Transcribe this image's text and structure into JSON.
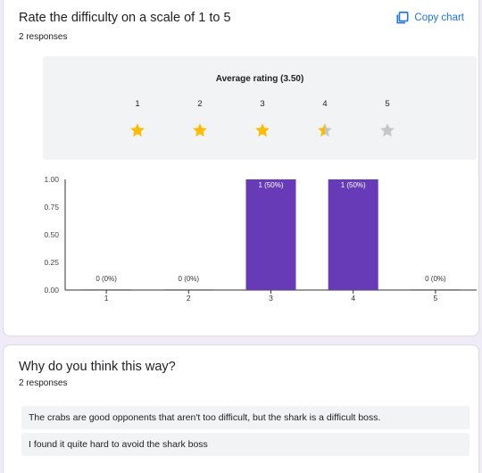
{
  "question1": {
    "title": "Rate the difficulty on a scale of 1 to 5",
    "responses": "2 responses",
    "copy_label": "Copy chart",
    "average_label": "Average rating (3.50)",
    "rating_scale": [
      "1",
      "2",
      "3",
      "4",
      "5"
    ],
    "average_value": 3.5
  },
  "chart_data": {
    "type": "bar",
    "categories": [
      "1",
      "2",
      "3",
      "4",
      "5"
    ],
    "values": [
      0,
      0,
      1,
      1,
      0
    ],
    "data_labels": [
      "0 (0%)",
      "0 (0%)",
      "1 (50%)",
      "1 (50%)",
      "0 (0%)"
    ],
    "yticks": [
      "1.00",
      "0.75",
      "0.50",
      "0.25",
      "0.00"
    ],
    "ylim": [
      0,
      1
    ],
    "bar_color": "#673ab7",
    "grid": false
  },
  "question2": {
    "title": "Why do you think this way?",
    "responses": "2 responses",
    "answers": [
      "The crabs are good opponents that aren't too difficult, but the shark is a difficult boss.",
      "I found it quite hard to avoid the shark boss"
    ]
  },
  "colors": {
    "accent": "#1a73e8",
    "star_filled": "#fbbc04",
    "star_empty": "#c6c6c6",
    "page_bg": "#f0ebf8"
  }
}
